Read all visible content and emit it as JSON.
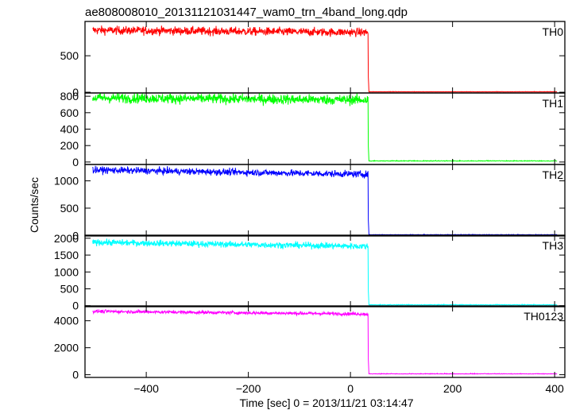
{
  "chart_data": {
    "type": "line",
    "title": "ae808008010_20131121031447_wam0_trn_4band_long.qdp",
    "xlabel": "Time [sec] 0 = 2013/11/21 03:14:47",
    "ylabel": "Counts/sec",
    "xlim": [
      -520,
      420
    ],
    "x_ticks": [
      -400,
      -200,
      0,
      200,
      400
    ],
    "step_time": 35,
    "x_start": -505,
    "x_end": 405,
    "panels": [
      {
        "name": "TH0",
        "color": "#ff0000",
        "ylim": [
          -10,
          970
        ],
        "ticks": [
          0,
          500
        ],
        "level_start": 850,
        "level_end": 820,
        "noise": 28,
        "after": 5
      },
      {
        "name": "TH1",
        "color": "#00ff00",
        "ylim": [
          -30,
          840
        ],
        "ticks": [
          0,
          200,
          400,
          600,
          800
        ],
        "level_start": 780,
        "level_end": 755,
        "noise": 30,
        "after": 10
      },
      {
        "name": "TH2",
        "color": "#0000ff",
        "ylim": [
          -10,
          1300
        ],
        "ticks": [
          0,
          500,
          1000
        ],
        "level_start": 1200,
        "level_end": 1120,
        "noise": 30,
        "after": 10
      },
      {
        "name": "TH3",
        "color": "#00ffff",
        "ylim": [
          -30,
          2090
        ],
        "ticks": [
          0,
          500,
          1000,
          1500,
          2000
        ],
        "level_start": 1880,
        "level_end": 1760,
        "noise": 45,
        "after": 20
      },
      {
        "name": "TH0123",
        "color": "#ff00ff",
        "ylim": [
          -200,
          5100
        ],
        "ticks": [
          0,
          2000,
          4000
        ],
        "level_start": 4700,
        "level_end": 4500,
        "noise": 60,
        "after": 50
      }
    ]
  }
}
